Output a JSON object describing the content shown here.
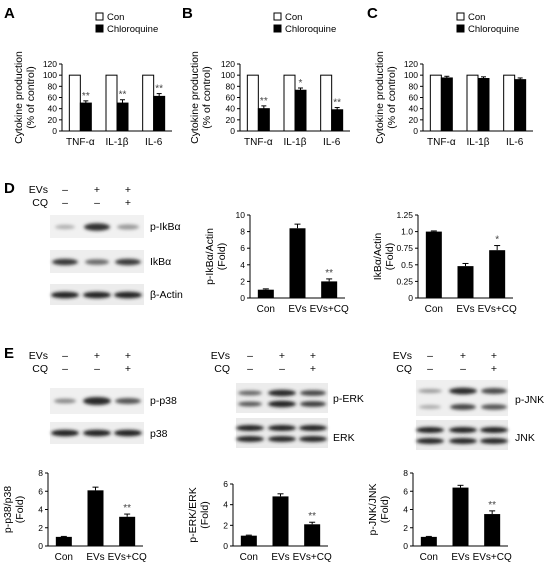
{
  "panel_labels": [
    "A",
    "B",
    "C",
    "D",
    "E"
  ],
  "conditions": {
    "row_labels": [
      "EVs",
      "CQ"
    ],
    "evs": [
      "–",
      "+",
      "+"
    ],
    "cq": [
      "–",
      "–",
      "+"
    ]
  },
  "blot_labels": {
    "d": [
      "p-IkBα",
      "IkBα",
      "β-Actin"
    ],
    "e_p38": [
      "p-p38",
      "p38"
    ],
    "e_erk": [
      "p-ERK",
      "ERK"
    ],
    "e_jnk": [
      "p-JNK",
      "JNK"
    ]
  },
  "chart_data": [
    {
      "panel": "A",
      "type": "bar",
      "categories": [
        "TNF-α",
        "IL-1β",
        "IL-6"
      ],
      "series": [
        {
          "name": "Con",
          "values": [
            100,
            100,
            100
          ],
          "color": "#ffffff"
        },
        {
          "name": "Chloroquine",
          "values": [
            50,
            50,
            62
          ],
          "color": "#000000",
          "errors": [
            4,
            6,
            5
          ]
        }
      ],
      "ylabel": "Cytokine production\n(% of control)",
      "ylim": [
        0,
        120
      ],
      "yticks": [
        0,
        20,
        40,
        60,
        80,
        100,
        120
      ],
      "annotations": [
        "**",
        "**",
        "**"
      ],
      "legend": "top-right"
    },
    {
      "panel": "B",
      "type": "bar",
      "categories": [
        "TNF-α",
        "IL-1β",
        "IL-6"
      ],
      "series": [
        {
          "name": "Con",
          "values": [
            100,
            100,
            100
          ],
          "color": "#ffffff"
        },
        {
          "name": "Chloroquine",
          "values": [
            40,
            73,
            38
          ],
          "color": "#000000",
          "errors": [
            5,
            4,
            4
          ]
        }
      ],
      "ylabel": "Cytokine production\n(% of control)",
      "ylim": [
        0,
        120
      ],
      "yticks": [
        0,
        20,
        40,
        60,
        80,
        100,
        120
      ],
      "annotations": [
        "**",
        "*",
        "**"
      ],
      "legend": "top-right"
    },
    {
      "panel": "C",
      "type": "bar",
      "categories": [
        "TNF-α",
        "IL-1β",
        "IL-6"
      ],
      "series": [
        {
          "name": "Con",
          "values": [
            100,
            100,
            100
          ],
          "color": "#ffffff"
        },
        {
          "name": "Chloroquine",
          "values": [
            95,
            94,
            92
          ],
          "color": "#000000",
          "errors": [
            3,
            3,
            3
          ]
        }
      ],
      "ylabel": "Cytokine production\n(% of control)",
      "ylim": [
        0,
        120
      ],
      "yticks": [
        0,
        20,
        40,
        60,
        80,
        100,
        120
      ],
      "annotations": [
        "",
        "",
        ""
      ],
      "legend": "top-right"
    },
    {
      "panel": "D1",
      "type": "bar",
      "categories": [
        "Con",
        "EVs",
        "EVs+CQ"
      ],
      "values": [
        1.0,
        8.4,
        2.0
      ],
      "errors": [
        0.1,
        0.5,
        0.3
      ],
      "ylabel": "p-IkBα/Actin\n(Fold)",
      "ylim": [
        0,
        10
      ],
      "yticks": [
        0,
        2,
        4,
        6,
        8,
        10
      ],
      "annotations": [
        "",
        "",
        "**"
      ]
    },
    {
      "panel": "D2",
      "type": "bar",
      "categories": [
        "Con",
        "EVs",
        "EVs+CQ"
      ],
      "values": [
        1.0,
        0.48,
        0.72
      ],
      "errors": [
        0.01,
        0.04,
        0.07
      ],
      "ylabel": "IkBα/Actin\n(Fold)",
      "ylim": [
        0,
        1.25
      ],
      "yticks": [
        0.0,
        0.25,
        0.5,
        0.75,
        1.0,
        1.25
      ],
      "ytick_labels": [
        "0",
        "0.25",
        "0.5",
        "0.75",
        "1.0",
        "1.25"
      ],
      "annotations": [
        "",
        "",
        "*"
      ]
    },
    {
      "panel": "E1",
      "type": "bar",
      "categories": [
        "Con",
        "EVs",
        "EVs+CQ"
      ],
      "values": [
        1.0,
        6.1,
        3.2
      ],
      "errors": [
        0.05,
        0.35,
        0.3
      ],
      "ylabel": "p-p38/p38\n(Fold)",
      "ylim": [
        0,
        8
      ],
      "yticks": [
        0,
        2,
        4,
        6,
        8
      ],
      "annotations": [
        "",
        "",
        "**"
      ]
    },
    {
      "panel": "E2",
      "type": "bar",
      "categories": [
        "Con",
        "EVs",
        "EVs+CQ"
      ],
      "values": [
        1.0,
        4.8,
        2.1
      ],
      "errors": [
        0.05,
        0.25,
        0.2
      ],
      "ylabel": "p-ERK/ERK\n(Fold)",
      "ylim": [
        0,
        6
      ],
      "yticks": [
        0,
        2,
        4,
        6
      ],
      "annotations": [
        "",
        "",
        "**"
      ]
    },
    {
      "panel": "E3",
      "type": "bar",
      "categories": [
        "Con",
        "EVs",
        "EVs+CQ"
      ],
      "values": [
        1.0,
        6.4,
        3.5
      ],
      "errors": [
        0.05,
        0.25,
        0.35
      ],
      "ylabel": "p-JNK/JNK\n(Fold)",
      "ylim": [
        0,
        8
      ],
      "yticks": [
        0,
        2,
        4,
        6,
        8
      ],
      "annotations": [
        "",
        "",
        "**"
      ]
    }
  ]
}
